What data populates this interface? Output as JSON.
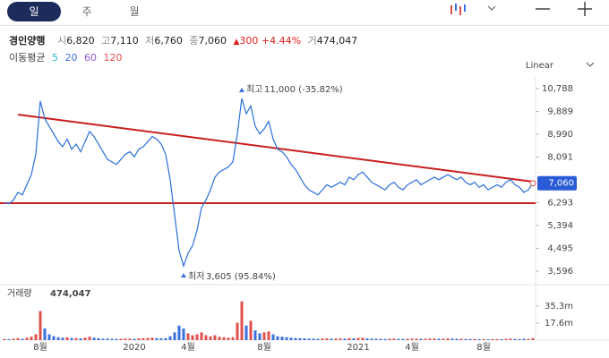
{
  "tabs": [
    "일",
    "주",
    "월"
  ],
  "quote": {
    "name": "경인양행",
    "fields": [
      {
        "label": "시",
        "value": "6,820"
      },
      {
        "label": "고",
        "value": "7,110"
      },
      {
        "label": "저",
        "value": "6,760"
      },
      {
        "label": "종",
        "value": "7,060"
      }
    ],
    "change": "300",
    "change_pct": "+4.44%",
    "volume_label": "거",
    "volume": "474,047"
  },
  "chart_data": [
    {
      "type": "line",
      "title": "경인양행",
      "color": "#2a6fd6",
      "scale": "Linear",
      "ma_label": "이동평균",
      "ma": [
        {
          "name": "5",
          "color": "#2bb5c9"
        },
        {
          "name": "20",
          "color": "#3b6fe0"
        },
        {
          "name": "60",
          "color": "#8e5bd0"
        },
        {
          "name": "120",
          "color": "#e0504d"
        }
      ],
      "annotations": {
        "high_label": "최고",
        "high": "11,000 (-35.82%)",
        "low_label": "최저",
        "low": "3,605 (95.84%)"
      },
      "price_tag": "7,060",
      "categories": [
        null,
        null,
        null,
        null,
        null,
        null,
        null,
        null,
        "8월",
        null,
        null,
        null,
        null,
        null,
        null,
        null,
        null,
        null,
        null,
        null,
        null,
        null,
        null,
        null,
        null,
        null,
        null,
        null,
        null,
        "2020",
        null,
        null,
        null,
        null,
        null,
        null,
        null,
        null,
        null,
        null,
        null,
        "4월",
        null,
        null,
        null,
        null,
        null,
        null,
        null,
        null,
        null,
        null,
        null,
        null,
        null,
        null,
        null,
        null,
        "8월",
        null,
        null,
        null,
        null,
        null,
        null,
        null,
        null,
        null,
        null,
        null,
        null,
        null,
        null,
        null,
        null,
        null,
        null,
        null,
        null,
        "2021",
        null,
        null,
        null,
        null,
        null,
        null,
        null,
        null,
        null,
        null,
        null,
        "4월",
        null,
        null,
        null,
        null,
        null,
        null,
        null,
        null,
        null,
        null,
        null,
        null,
        null,
        null,
        null,
        "8월",
        null,
        null,
        null,
        null,
        null,
        null,
        null,
        null,
        null,
        null,
        null
      ],
      "values": [
        6300,
        6250,
        6400,
        6700,
        6600,
        7000,
        7400,
        8200,
        10300,
        9600,
        9300,
        9000,
        8700,
        8500,
        8800,
        8400,
        8600,
        8300,
        8700,
        9100,
        8900,
        8600,
        8300,
        8000,
        7900,
        7800,
        8000,
        8200,
        8300,
        8100,
        8400,
        8500,
        8700,
        8900,
        8800,
        8600,
        8200,
        7200,
        5800,
        4400,
        3800,
        4300,
        4600,
        5200,
        6100,
        6400,
        6800,
        7300,
        7500,
        7600,
        7700,
        7900,
        9000,
        10400,
        9800,
        10100,
        9300,
        9000,
        9200,
        9500,
        8800,
        8400,
        8300,
        8100,
        7800,
        7600,
        7300,
        7000,
        6800,
        6700,
        6600,
        6800,
        7000,
        6900,
        7000,
        7100,
        7000,
        7300,
        7200,
        7400,
        7500,
        7300,
        7100,
        7000,
        6900,
        6800,
        7000,
        7100,
        6900,
        6800,
        7000,
        7100,
        7200,
        7000,
        7100,
        7200,
        7300,
        7200,
        7300,
        7400,
        7300,
        7200,
        7300,
        7100,
        7000,
        7100,
        6900,
        7000,
        6800,
        6900,
        7000,
        6900,
        7100,
        7200,
        7000,
        6900,
        6700,
        6800,
        7060
      ],
      "ylim": [
        3242,
        11176
      ],
      "yticks": [
        {
          "value": 10788,
          "label": "10,788"
        },
        {
          "value": 9889,
          "label": "9,889"
        },
        {
          "value": 8990,
          "label": "8,990"
        },
        {
          "value": 8091,
          "label": "8,091"
        },
        {
          "value": 6293,
          "label": "6,293"
        },
        {
          "value": 5394,
          "label": "5,394"
        },
        {
          "value": 4495,
          "label": "4,495"
        },
        {
          "value": 3596,
          "label": "3,596"
        }
      ]
    },
    {
      "type": "bar",
      "title": "거래량",
      "title_value": "474,047",
      "up_color": "#e0504d",
      "down_color": "#3b6fe0",
      "values": [
        1.2,
        1.0,
        1.5,
        2.0,
        1.3,
        2.5,
        3.5,
        6.0,
        30.0,
        12.0,
        6.0,
        4.0,
        3.0,
        2.5,
        3.0,
        2.2,
        2.0,
        1.8,
        2.5,
        3.5,
        2.5,
        2.0,
        1.5,
        1.5,
        1.3,
        1.2,
        1.4,
        1.6,
        1.5,
        1.3,
        1.8,
        2.0,
        2.2,
        2.5,
        2.0,
        1.8,
        2.0,
        4.0,
        8.0,
        15.0,
        12.0,
        7.0,
        5.0,
        6.0,
        8.0,
        5.0,
        4.0,
        5.0,
        3.5,
        3.0,
        2.5,
        3.0,
        18.0,
        40.0,
        15.0,
        20.0,
        10.0,
        7.0,
        8.0,
        9.0,
        6.0,
        4.0,
        3.5,
        3.0,
        2.5,
        2.2,
        2.0,
        1.8,
        1.6,
        1.5,
        1.4,
        1.6,
        1.8,
        1.5,
        1.6,
        1.7,
        1.5,
        2.0,
        1.8,
        2.2,
        2.5,
        1.8,
        1.5,
        1.4,
        1.3,
        1.2,
        1.4,
        1.5,
        1.3,
        1.2,
        1.4,
        1.5,
        1.6,
        1.3,
        1.4,
        1.5,
        1.6,
        1.4,
        1.5,
        1.7,
        1.5,
        1.3,
        1.5,
        1.2,
        1.1,
        1.2,
        1.0,
        1.1,
        0.9,
        1.0,
        1.1,
        1.0,
        1.3,
        1.5,
        1.2,
        1.0,
        1.3,
        1.2,
        2.0
      ],
      "ylim": [
        0,
        53.7
      ],
      "yticks": [
        {
          "value": 35.3,
          "label": "35.3m"
        },
        {
          "value": 17.6,
          "label": "17.6m"
        }
      ]
    }
  ]
}
